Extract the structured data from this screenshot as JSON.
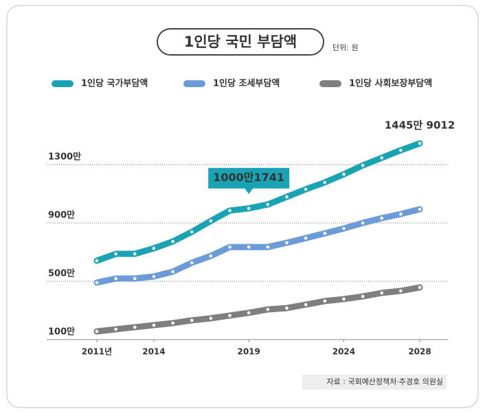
{
  "chart_data": {
    "type": "line",
    "title": "1인당 국민 부담액",
    "unit": "단위: 원",
    "source": "자료 : 국회예산정책처·추경호 의원실",
    "x": [
      2011,
      2012,
      2013,
      2014,
      2015,
      2016,
      2017,
      2018,
      2019,
      2020,
      2021,
      2022,
      2023,
      2024,
      2025,
      2026,
      2027,
      2028
    ],
    "xlim": [
      2009.5,
      2029.5
    ],
    "xticks": [
      {
        "value": 2011,
        "label": "2011년"
      },
      2014,
      2019,
      2024,
      2028
    ],
    "ylim": [
      100,
      1500
    ],
    "yticks": [
      {
        "value": 100,
        "label": "100만"
      },
      {
        "value": 500,
        "label": "500만"
      },
      {
        "value": 900,
        "label": "900만"
      },
      {
        "value": 1300,
        "label": "1300만"
      }
    ],
    "grid": true,
    "series": [
      {
        "name": "1인당 국가부담액",
        "color": "#1aa3b5",
        "values": [
          641,
          688,
          688,
          726,
          773,
          839,
          914,
          985,
          1000.1741,
          1027,
          1079,
          1131,
          1178,
          1234,
          1295,
          1347,
          1399,
          1445.9012
        ],
        "value_labels": [
          null,
          null,
          null,
          null,
          null,
          null,
          null,
          null,
          "1000만1741",
          null,
          null,
          null,
          null,
          null,
          null,
          null,
          null,
          "1445만 9012"
        ]
      },
      {
        "name": "1인당 조세부담액",
        "color": "#6b9bd8",
        "values": [
          491,
          519,
          519,
          533,
          566,
          627,
          674,
          735,
          735,
          735,
          764,
          796,
          829,
          862,
          900,
          933,
          961,
          994
        ]
      },
      {
        "name": "1인당 사회보장부담액",
        "color": "#7f7f80",
        "values": [
          156,
          171,
          185,
          199,
          213,
          232,
          246,
          265,
          284,
          307,
          316,
          340,
          364,
          378,
          396,
          420,
          434,
          458
        ]
      }
    ]
  }
}
